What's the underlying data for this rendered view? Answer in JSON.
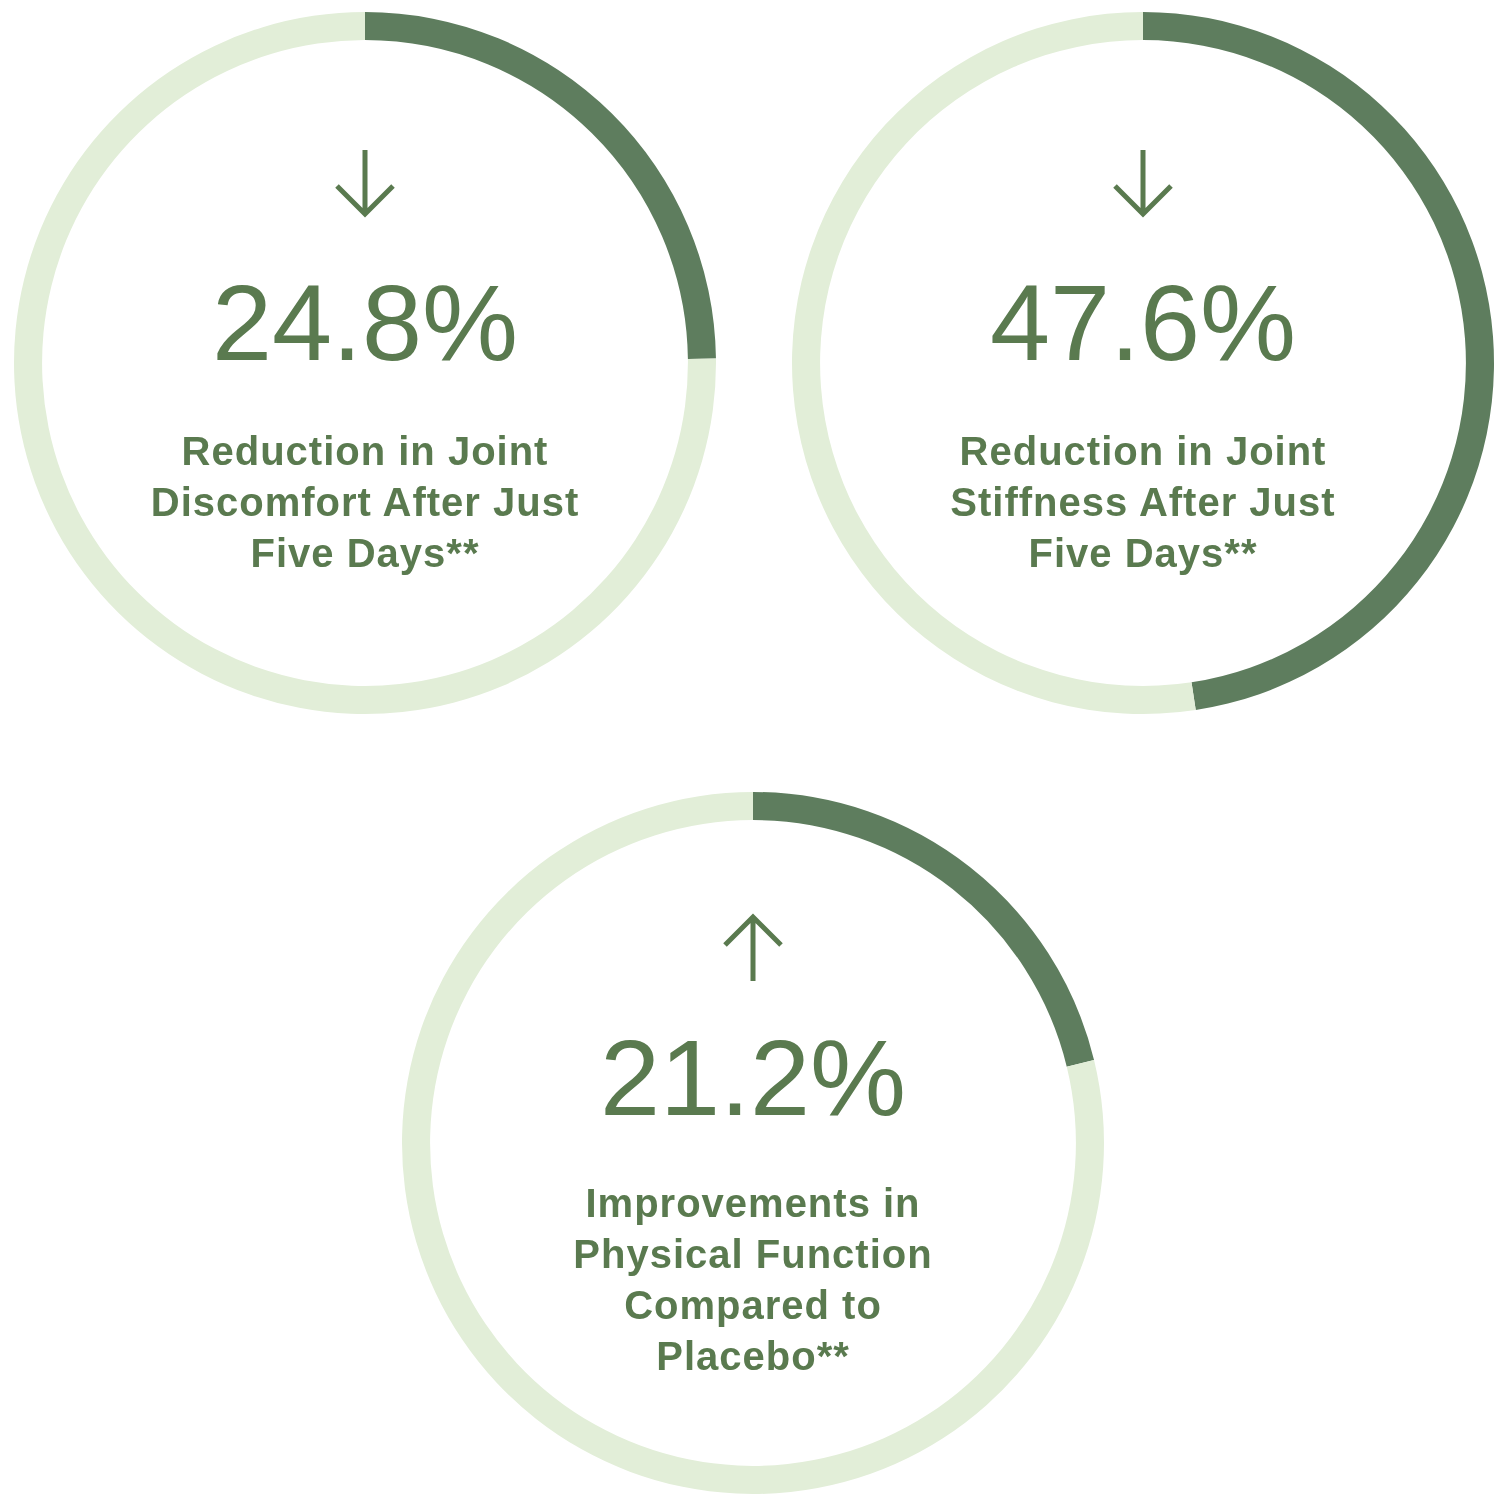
{
  "chart_data": [
    {
      "type": "donut",
      "title": "24.8%",
      "subtitle": "Reduction in Joint Discomfort After Just Five Days**",
      "categories": [
        null,
        null
      ],
      "values": [
        24.8,
        75.2
      ],
      "colors": [
        "#5e7d5e",
        "#e2eed8"
      ]
    },
    {
      "type": "donut",
      "title": "47.6%",
      "subtitle": "Reduction in Joint Stiffness After Just Five Days**",
      "categories": [
        null,
        null
      ],
      "values": [
        47.6,
        52.4
      ],
      "colors": [
        "#5e7d5e",
        "#e2eed8"
      ]
    },
    {
      "type": "donut",
      "title": "21.2%",
      "subtitle": "Improvements in Physical Function Compared to Placebo**",
      "categories": [
        null,
        null
      ],
      "values": [
        21.2,
        78.8
      ],
      "colors": [
        "#5e7d5e",
        "#e2eed8"
      ]
    }
  ]
}
